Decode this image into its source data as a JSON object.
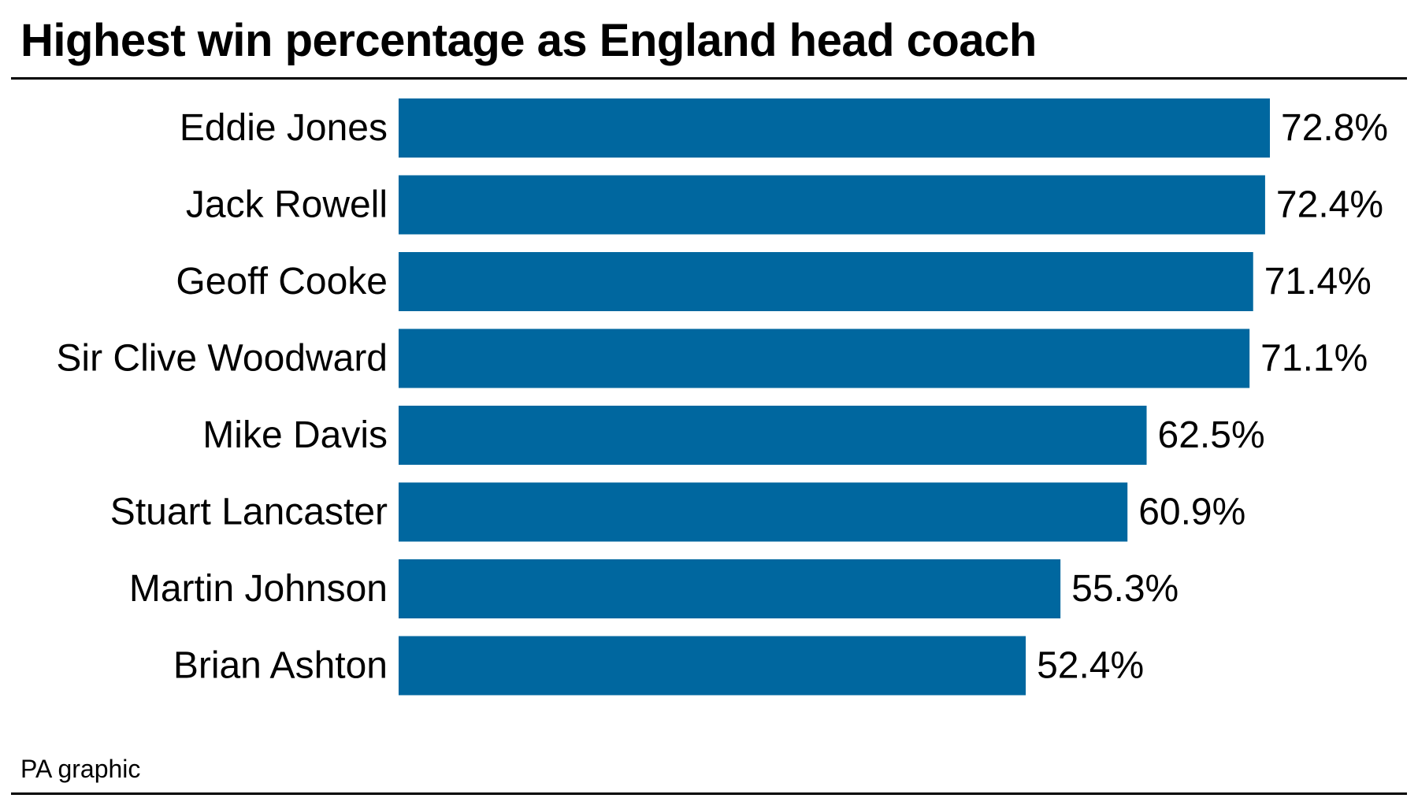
{
  "chart_data": {
    "type": "bar",
    "orientation": "horizontal",
    "title": "Highest win percentage as England head coach",
    "categories": [
      "Eddie Jones",
      "Jack Rowell",
      "Geoff Cooke",
      "Sir Clive Woodward",
      "Mike Davis",
      "Stuart Lancaster",
      "Martin Johnson",
      "Brian Ashton"
    ],
    "values": [
      72.8,
      72.4,
      71.4,
      71.1,
      62.5,
      60.9,
      55.3,
      52.4
    ],
    "value_labels": [
      "72.8%",
      "72.4%",
      "71.4%",
      "71.1%",
      "62.5%",
      "60.9%",
      "55.3%",
      "52.4%"
    ],
    "unit": "%",
    "xlabel": "",
    "ylabel": "",
    "xlim": [
      0,
      72.8
    ],
    "grid": false,
    "legend": "none",
    "bar_color": "#00679f"
  },
  "source": "PA graphic"
}
